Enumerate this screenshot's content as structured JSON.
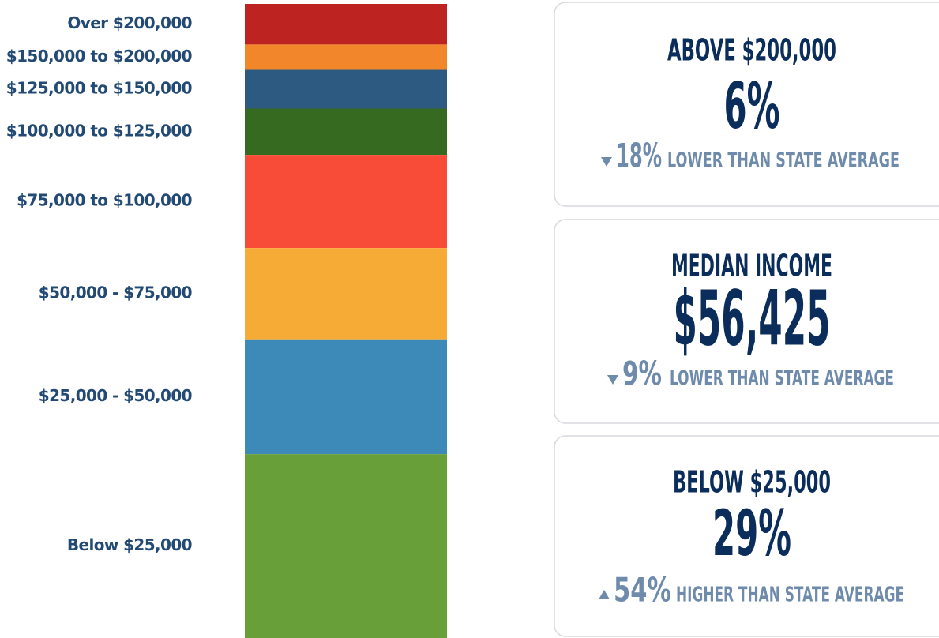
{
  "chart_data": {
    "type": "bar",
    "stacked": true,
    "categories": [
      "Over $200,000",
      "$150,000 to $200,000",
      "$125,000 to $150,000",
      "$100,000 to $125,000",
      "$75,000 to $100,000",
      "$50,000 - $75,000",
      "$25,000 - $50,000",
      "Below $25,000"
    ],
    "values": [
      6.4,
      4.0,
      6.1,
      7.3,
      14.7,
      14.4,
      18.1,
      29.0
    ],
    "colors": [
      "#bd2320",
      "#f2862b",
      "#2d5a80",
      "#356a20",
      "#f84b38",
      "#f7ab37",
      "#3d8ab8",
      "#699f38"
    ],
    "ylim": [
      0,
      100
    ]
  },
  "cards": [
    {
      "title": "ABOVE $200,000",
      "value": "6%",
      "change": "18%",
      "direction": "down",
      "note": "LOWER THAN STATE AVERAGE"
    },
    {
      "title": "MEDIAN INCOME",
      "value": "$56,425",
      "change": "9%",
      "direction": "down",
      "note": "LOWER THAN STATE AVERAGE"
    },
    {
      "title": "BELOW $25,000",
      "value": "29%",
      "change": "54%",
      "direction": "up",
      "note": "HIGHER THAN STATE AVERAGE"
    }
  ]
}
